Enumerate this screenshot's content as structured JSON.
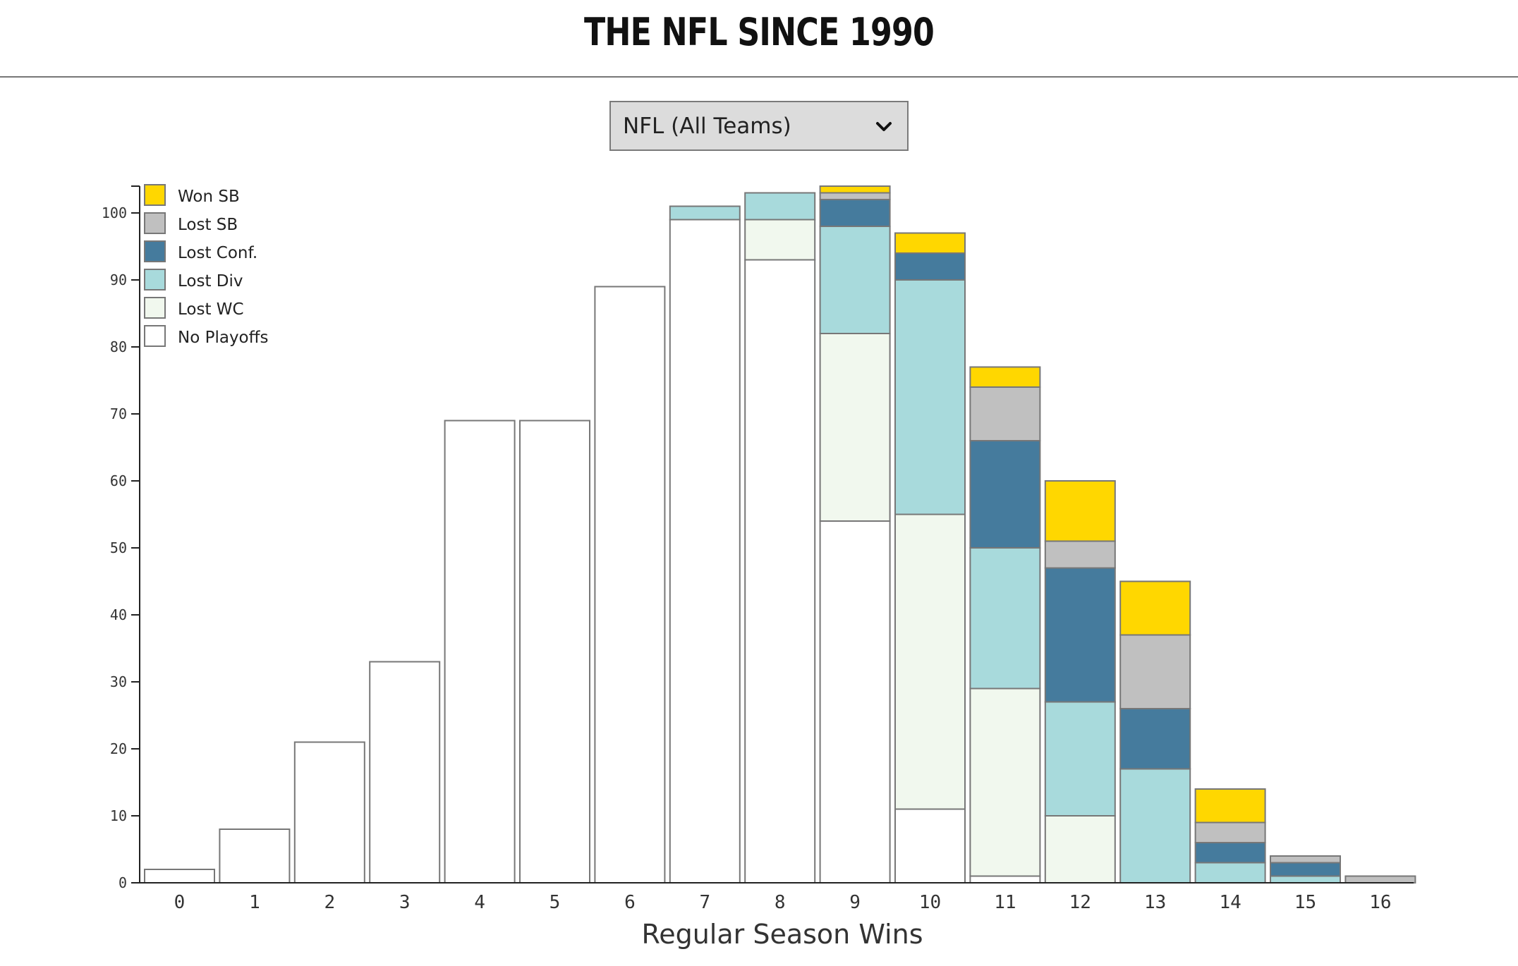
{
  "header": {
    "title": "THE NFL SINCE 1990"
  },
  "filter": {
    "selected": "NFL (All Teams)"
  },
  "colors": {
    "Won SB": "#ffd700",
    "Lost SB": "#c0c0c0",
    "Lost Conf.": "#457b9d",
    "Lost Div": "#a8dadc",
    "Lost WC": "#f1f8ee",
    "No Playoffs": "#ffffff",
    "bar_stroke": "#777777"
  },
  "chart_data": {
    "type": "bar",
    "stacked": true,
    "categories": [
      "0",
      "1",
      "2",
      "3",
      "4",
      "5",
      "6",
      "7",
      "8",
      "9",
      "10",
      "11",
      "12",
      "13",
      "14",
      "15",
      "16"
    ],
    "series": [
      {
        "name": "No Playoffs",
        "values": [
          2,
          8,
          21,
          33,
          69,
          69,
          89,
          99,
          93,
          54,
          11,
          1,
          0,
          0,
          0,
          0,
          0
        ]
      },
      {
        "name": "Lost WC",
        "values": [
          0,
          0,
          0,
          0,
          0,
          0,
          0,
          0,
          6,
          28,
          44,
          28,
          10,
          0,
          0,
          0,
          0
        ]
      },
      {
        "name": "Lost Div",
        "values": [
          0,
          0,
          0,
          0,
          0,
          0,
          0,
          2,
          4,
          16,
          35,
          21,
          17,
          17,
          3,
          1,
          0
        ]
      },
      {
        "name": "Lost Conf.",
        "values": [
          0,
          0,
          0,
          0,
          0,
          0,
          0,
          0,
          0,
          4,
          4,
          16,
          20,
          9,
          3,
          2,
          0
        ]
      },
      {
        "name": "Lost SB",
        "values": [
          0,
          0,
          0,
          0,
          0,
          0,
          0,
          0,
          0,
          1,
          0,
          8,
          4,
          11,
          3,
          1,
          1
        ]
      },
      {
        "name": "Won SB",
        "values": [
          0,
          0,
          0,
          0,
          0,
          0,
          0,
          0,
          0,
          1,
          3,
          3,
          9,
          8,
          5,
          0,
          0
        ]
      }
    ],
    "legend_order": [
      "Won SB",
      "Lost SB",
      "Lost Conf.",
      "Lost Div",
      "Lost WC",
      "No Playoffs"
    ],
    "xlabel": "Regular Season Wins",
    "ylabel": "",
    "ylim": [
      0,
      104
    ],
    "yticks": [
      0,
      10,
      20,
      30,
      40,
      50,
      60,
      70,
      80,
      90,
      100
    ],
    "legend_position": "top-left",
    "grid": false
  }
}
